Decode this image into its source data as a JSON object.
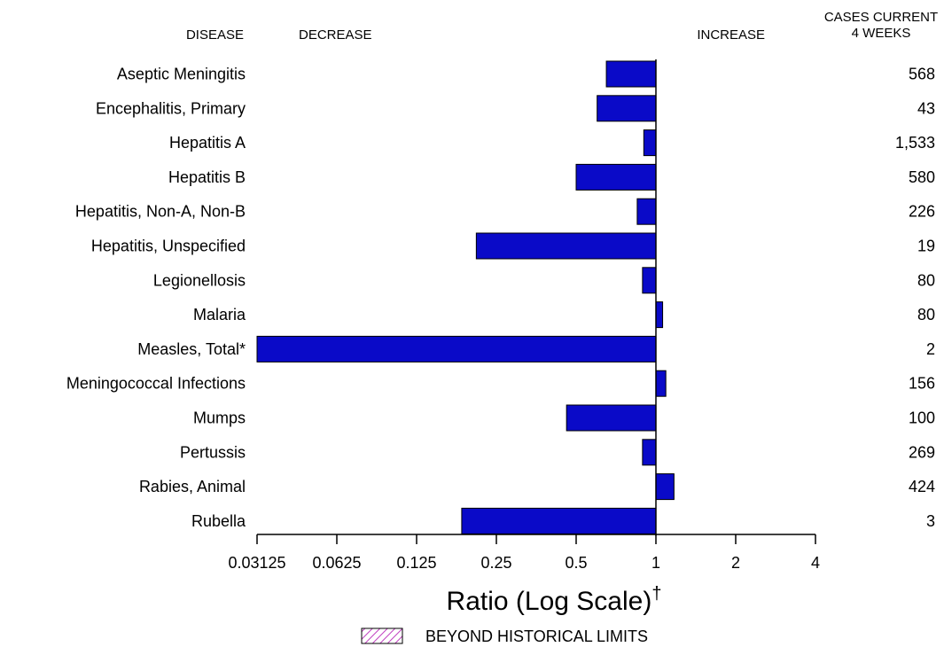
{
  "chart_data": {
    "type": "bar",
    "orientation": "horizontal",
    "scale": "log2",
    "headers": {
      "disease": "DISEASE",
      "decrease": "DECREASE",
      "increase": "INCREASE",
      "cases_line1": "CASES CURRENT",
      "cases_line2": "4 WEEKS"
    },
    "categories": [
      "Aseptic Meningitis",
      "Encephalitis, Primary",
      "Hepatitis A",
      "Hepatitis B",
      "Hepatitis, Non-A, Non-B",
      "Hepatitis, Unspecified",
      "Legionellosis",
      "Malaria",
      "Measles, Total*",
      "Meningococcal Infections",
      "Mumps",
      "Pertussis",
      "Rabies, Animal",
      "Rubella"
    ],
    "values": [
      0.65,
      0.6,
      0.9,
      0.5,
      0.85,
      0.21,
      0.89,
      1.06,
      0.03125,
      1.09,
      0.46,
      0.89,
      1.17,
      0.185
    ],
    "cases": [
      "568",
      "43",
      "1,533",
      "580",
      "226",
      "19",
      "80",
      "80",
      "2",
      "156",
      "100",
      "269",
      "424",
      "3"
    ],
    "x_ticks": [
      0.03125,
      0.0625,
      0.125,
      0.25,
      0.5,
      1,
      2,
      4
    ],
    "x_tick_labels": [
      "0.03125",
      "0.0625",
      "0.125",
      "0.25",
      "0.5",
      "1",
      "2",
      "4"
    ],
    "xlim": [
      0.03125,
      4
    ],
    "xlabel": "Ratio (Log Scale)",
    "xlabel_mark": "†",
    "legend_label": "BEYOND HISTORICAL LIMITS",
    "bar_color": "#0a0ac8",
    "legend_hatch_color": "#c040c0"
  }
}
